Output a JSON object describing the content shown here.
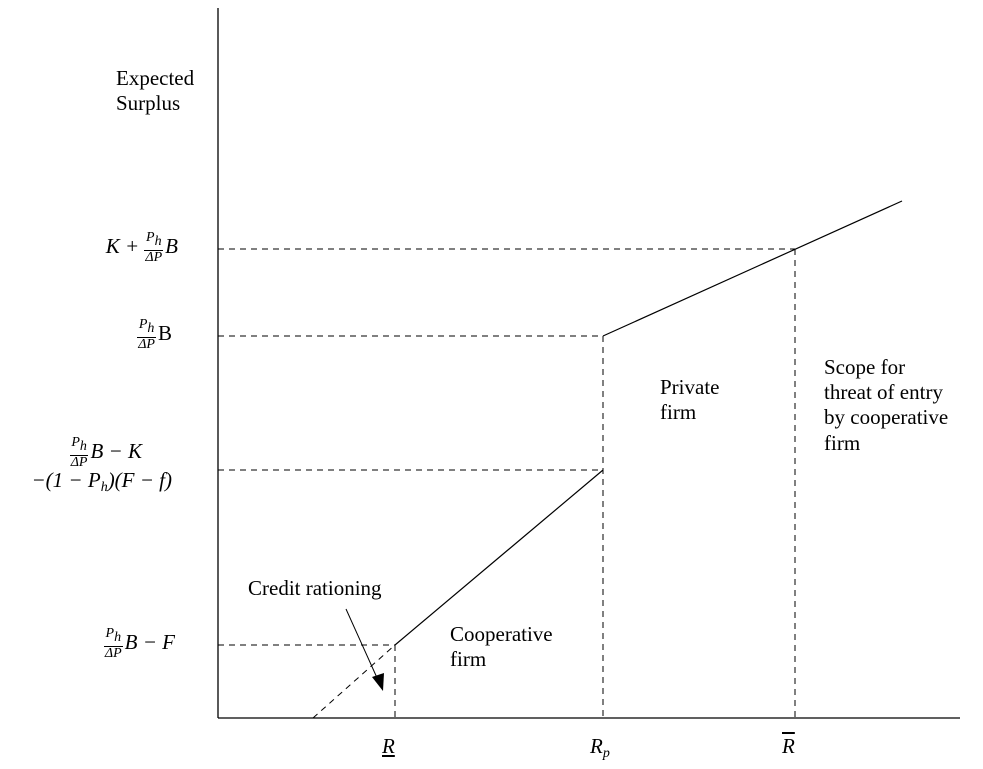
{
  "y_axis_title": {
    "line1": "Expected",
    "line2": "Surplus"
  },
  "y_labels": {
    "l4": {
      "a": "K + ",
      "num": "P",
      "num_sub": "h",
      "den": "ΔP",
      "b": "B"
    },
    "l3": {
      "num": "P",
      "num_sub": "h",
      "den": "ΔP",
      "b": "B"
    },
    "l2": {
      "num": "P",
      "num_sub": "h",
      "den": "ΔP",
      "b": "B − K",
      "line2a": "−(1 − P",
      "line2_sub": "h",
      "line2b": ")(F − f)"
    },
    "l1": {
      "num": "P",
      "num_sub": "h",
      "den": "ΔP",
      "b": "B − F"
    }
  },
  "x_labels": {
    "r_low": "R",
    "r_p": "R",
    "r_p_sub": "p",
    "r_high": "R"
  },
  "annotations": {
    "credit_rationing": "Credit rationing",
    "cooperative": {
      "line1": "Cooperative",
      "line2": "firm"
    },
    "private": {
      "line1": "Private",
      "line2": "firm"
    },
    "scope": {
      "line1": "Scope for",
      "line2": "threat of entry",
      "line3": "by cooperative",
      "line4": "firm"
    }
  }
}
